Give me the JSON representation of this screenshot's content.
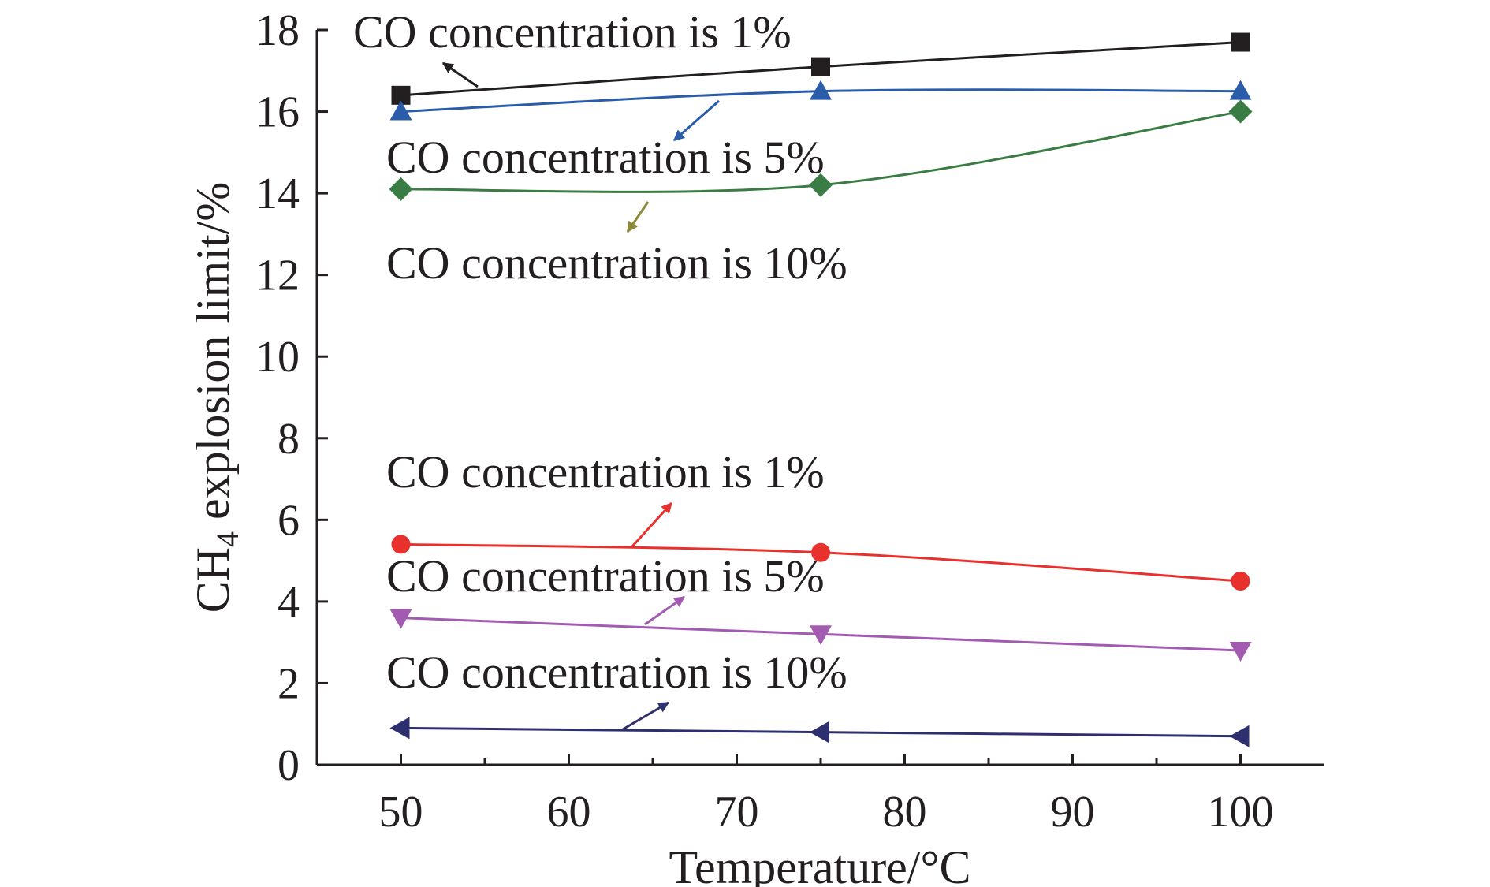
{
  "chart_data": {
    "type": "line",
    "xlabel": "Temperature/°C",
    "ylabel": {
      "prefix": "CH",
      "sub": "4",
      "suffix": " explosion limit/%"
    },
    "xlim": [
      45,
      105
    ],
    "ylim": [
      0,
      18
    ],
    "xticks": [
      50,
      60,
      70,
      80,
      90,
      100
    ],
    "yticks": [
      0,
      2,
      4,
      6,
      8,
      10,
      12,
      14,
      16,
      18
    ],
    "grid": false,
    "x": [
      50,
      75,
      100
    ],
    "series": [
      {
        "key": "upper_1",
        "values": [
          16.4,
          17.1,
          17.7
        ],
        "color": "#231f20",
        "marker": "square"
      },
      {
        "key": "upper_5",
        "values": [
          16.0,
          16.5,
          16.5
        ],
        "color": "#2a5caa",
        "marker": "triangle-up"
      },
      {
        "key": "upper_10",
        "values": [
          14.1,
          14.2,
          16.0
        ],
        "color": "#3a7d44",
        "marker": "diamond"
      },
      {
        "key": "lower_1",
        "values": [
          5.4,
          5.2,
          4.5
        ],
        "color": "#e8302d",
        "marker": "circle"
      },
      {
        "key": "lower_5",
        "values": [
          3.6,
          3.2,
          2.8
        ],
        "color": "#a25bb0",
        "marker": "triangle-down"
      },
      {
        "key": "lower_10",
        "values": [
          0.9,
          0.8,
          0.7
        ],
        "color": "#2e2f6e",
        "marker": "triangle-left"
      }
    ],
    "annotations": [
      {
        "text": "CO concentration is 1%",
        "series": "upper_1",
        "arrow_color": "#231f20"
      },
      {
        "text": "CO concentration is 5%",
        "series": "upper_5",
        "arrow_color": "#2a5caa"
      },
      {
        "text": "CO concentration is 10%",
        "series": "upper_10",
        "arrow_color": "#8b8a3a"
      },
      {
        "text": "CO concentration is 1%",
        "series": "lower_1",
        "arrow_color": "#e8302d"
      },
      {
        "text": "CO concentration is 5%",
        "series": "lower_5",
        "arrow_color": "#a25bb0"
      },
      {
        "text": "CO concentration is 10%",
        "series": "lower_10",
        "arrow_color": "#2e2f6e"
      }
    ]
  }
}
